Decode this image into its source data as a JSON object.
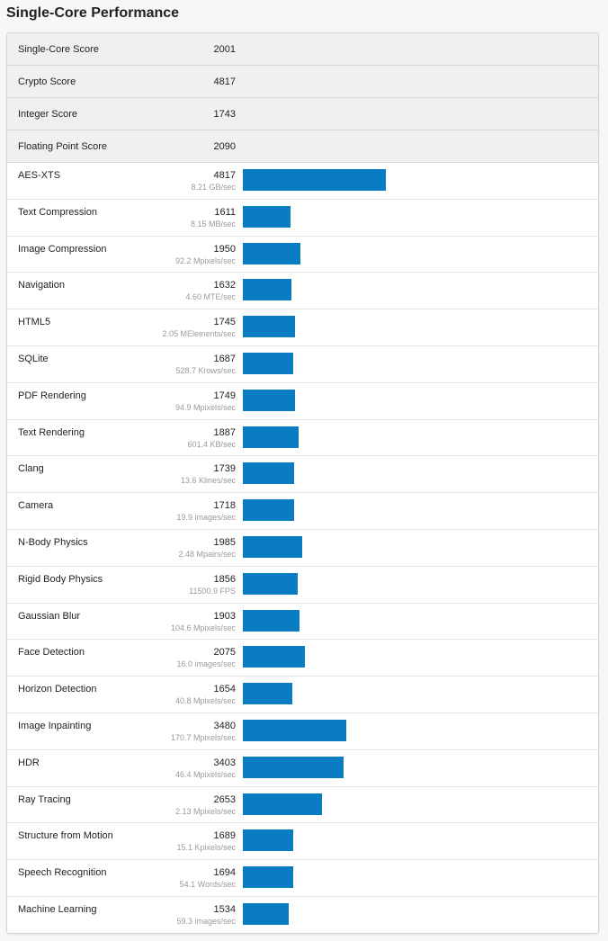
{
  "page": {
    "title": "Single-Core Performance"
  },
  "colors": {
    "bar": "#0a7cc2",
    "summary_bg": "#f0f0f0",
    "muted_text": "#9a9a9a"
  },
  "summary": [
    {
      "label": "Single-Core Score",
      "score": "2001"
    },
    {
      "label": "Crypto Score",
      "score": "4817"
    },
    {
      "label": "Integer Score",
      "score": "1743"
    },
    {
      "label": "Floating Point Score",
      "score": "2090"
    }
  ],
  "bar_scale_max": 11500,
  "benchmarks": [
    {
      "name": "AES-XTS",
      "score": "4817",
      "rate": "8.21 GB/sec",
      "value": 4817
    },
    {
      "name": "Text Compression",
      "score": "1611",
      "rate": "8.15 MB/sec",
      "value": 1611
    },
    {
      "name": "Image Compression",
      "score": "1950",
      "rate": "92.2 Mpixels/sec",
      "value": 1950
    },
    {
      "name": "Navigation",
      "score": "1632",
      "rate": "4.60 MTE/sec",
      "value": 1632
    },
    {
      "name": "HTML5",
      "score": "1745",
      "rate": "2.05 MElements/sec",
      "value": 1745
    },
    {
      "name": "SQLite",
      "score": "1687",
      "rate": "528.7 Krows/sec",
      "value": 1687
    },
    {
      "name": "PDF Rendering",
      "score": "1749",
      "rate": "94.9 Mpixels/sec",
      "value": 1749
    },
    {
      "name": "Text Rendering",
      "score": "1887",
      "rate": "601.4 KB/sec",
      "value": 1887
    },
    {
      "name": "Clang",
      "score": "1739",
      "rate": "13.6 Klines/sec",
      "value": 1739
    },
    {
      "name": "Camera",
      "score": "1718",
      "rate": "19.9 images/sec",
      "value": 1718
    },
    {
      "name": "N-Body Physics",
      "score": "1985",
      "rate": "2.48 Mpairs/sec",
      "value": 1985
    },
    {
      "name": "Rigid Body Physics",
      "score": "1856",
      "rate": "11500.9 FPS",
      "value": 1856
    },
    {
      "name": "Gaussian Blur",
      "score": "1903",
      "rate": "104.6 Mpixels/sec",
      "value": 1903
    },
    {
      "name": "Face Detection",
      "score": "2075",
      "rate": "16.0 images/sec",
      "value": 2075
    },
    {
      "name": "Horizon Detection",
      "score": "1654",
      "rate": "40.8 Mpixels/sec",
      "value": 1654
    },
    {
      "name": "Image Inpainting",
      "score": "3480",
      "rate": "170.7 Mpixels/sec",
      "value": 3480
    },
    {
      "name": "HDR",
      "score": "3403",
      "rate": "46.4 Mpixels/sec",
      "value": 3403
    },
    {
      "name": "Ray Tracing",
      "score": "2653",
      "rate": "2.13 Mpixels/sec",
      "value": 2653
    },
    {
      "name": "Structure from Motion",
      "score": "1689",
      "rate": "15.1 Kpixels/sec",
      "value": 1689
    },
    {
      "name": "Speech Recognition",
      "score": "1694",
      "rate": "54.1 Words/sec",
      "value": 1694
    },
    {
      "name": "Machine Learning",
      "score": "1534",
      "rate": "59.3 images/sec",
      "value": 1534
    }
  ]
}
